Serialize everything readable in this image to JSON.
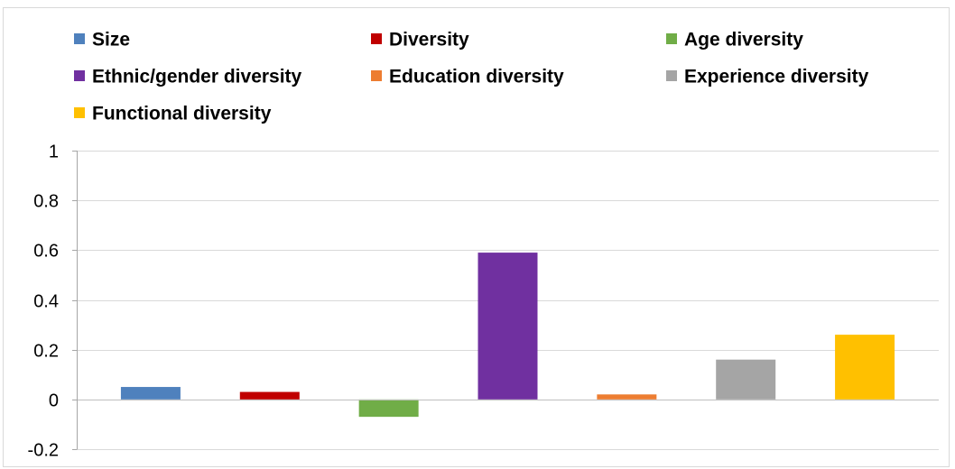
{
  "chart_data": {
    "type": "bar",
    "ylim": [
      -0.2,
      1
    ],
    "yticks": [
      1,
      0.8,
      0.6,
      0.4,
      0.2,
      0,
      -0.2
    ],
    "grid": true,
    "legend_position": "top",
    "series": [
      {
        "name": "Size",
        "values": [
          0.05
        ],
        "color": "#4F81BD"
      },
      {
        "name": "Diversity",
        "values": [
          0.03
        ],
        "color": "#C00000"
      },
      {
        "name": "Age diversity",
        "values": [
          -0.07
        ],
        "color": "#70AD47"
      },
      {
        "name": "Ethnic/gender diversity",
        "values": [
          0.59
        ],
        "color": "#7030A0"
      },
      {
        "name": "Education diversity",
        "values": [
          0.02
        ],
        "color": "#ED7D31"
      },
      {
        "name": "Experience diversity",
        "values": [
          0.16
        ],
        "color": "#A5A5A5"
      },
      {
        "name": "Functional diversity",
        "values": [
          0.26
        ],
        "color": "#FFC000"
      }
    ]
  }
}
